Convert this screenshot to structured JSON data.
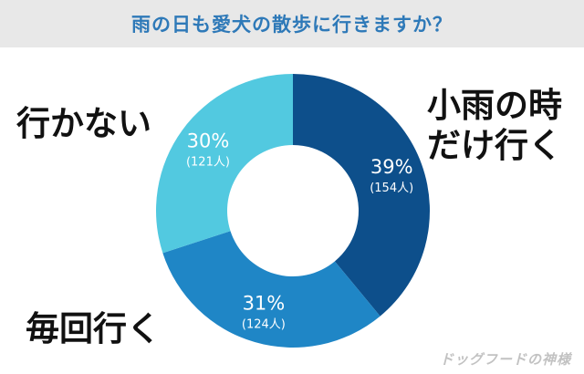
{
  "header": {
    "title": "雨の日も愛犬の散歩に行きますか？"
  },
  "labels": {
    "right_line1": "小雨の時",
    "right_line2": "だけ行く",
    "left": "行かない",
    "bottom": "毎回行く"
  },
  "watermark": "ドッグフードの神様",
  "chart_data": {
    "type": "pie",
    "title": "雨の日も愛犬の散歩に行きますか？",
    "donut": true,
    "series": [
      {
        "name": "小雨の時だけ行く",
        "percent": 39,
        "count": 154,
        "pct_label": "39%",
        "count_label": "(154人)",
        "color": "#0d4f8b"
      },
      {
        "name": "毎回行く",
        "percent": 31,
        "count": 124,
        "pct_label": "31%",
        "count_label": "(124人)",
        "color": "#1f86c6"
      },
      {
        "name": "行かない",
        "percent": 30,
        "count": 121,
        "pct_label": "30%",
        "count_label": "(121人)",
        "color": "#52c9e0"
      }
    ]
  }
}
